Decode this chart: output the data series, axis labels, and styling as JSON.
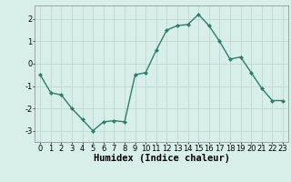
{
  "x": [
    0,
    1,
    2,
    3,
    4,
    5,
    6,
    7,
    8,
    9,
    10,
    11,
    12,
    13,
    14,
    15,
    16,
    17,
    18,
    19,
    20,
    21,
    22,
    23
  ],
  "y": [
    -0.5,
    -1.3,
    -1.4,
    -2.0,
    -2.5,
    -3.0,
    -2.6,
    -2.55,
    -2.6,
    -0.5,
    -0.4,
    0.6,
    1.5,
    1.7,
    1.75,
    2.2,
    1.7,
    1.0,
    0.2,
    0.3,
    -0.4,
    -1.1,
    -1.65,
    -1.65
  ],
  "line_color": "#2e7d6e",
  "marker": "D",
  "marker_size": 2,
  "bg_color": "#d8eee8",
  "grid_color": "#c0d8d0",
  "xlabel": "Humidex (Indice chaleur)",
  "ylim": [
    -3.5,
    2.6
  ],
  "xlim": [
    -0.5,
    23.5
  ],
  "yticks": [
    -3,
    -2,
    -1,
    0,
    1,
    2
  ],
  "xticks": [
    0,
    1,
    2,
    3,
    4,
    5,
    6,
    7,
    8,
    9,
    10,
    11,
    12,
    13,
    14,
    15,
    16,
    17,
    18,
    19,
    20,
    21,
    22,
    23
  ],
  "tick_label_fontsize": 6,
  "xlabel_fontsize": 7.5
}
